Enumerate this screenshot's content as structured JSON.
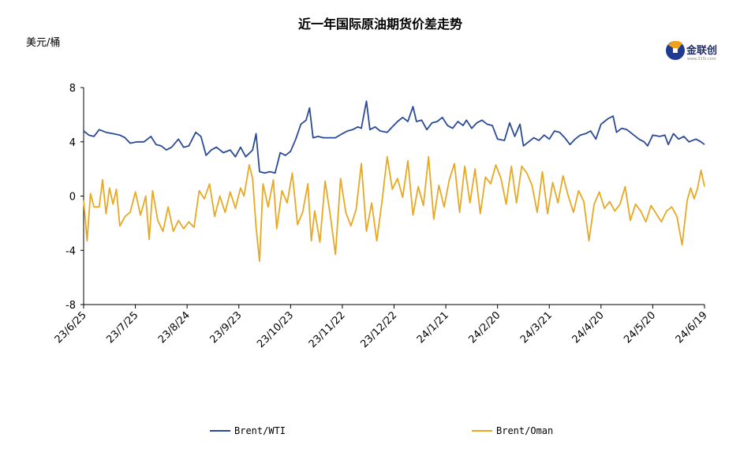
{
  "chart_data": {
    "type": "line",
    "title": "近一年国际原油期货价差走势",
    "ylabel": "美元/桶",
    "ylim": [
      -8,
      8
    ],
    "yticks": [
      8,
      4,
      0,
      -4,
      -8
    ],
    "xlim": [
      "2023-06-25",
      "2024-06-19"
    ],
    "xticks": [
      "23/6/25",
      "23/7/25",
      "23/8/24",
      "23/9/23",
      "23/10/23",
      "23/11/22",
      "23/12/22",
      "24/1/21",
      "24/2/20",
      "24/3/21",
      "24/4/20",
      "24/5/20",
      "24/6/19"
    ],
    "grid": false,
    "legend_position": "bottom",
    "series": [
      {
        "name": "Brent/WTI",
        "color": "#2b4a96",
        "points": [
          [
            "2023-06-25",
            4.8
          ],
          [
            "2023-06-28",
            4.5
          ],
          [
            "2023-07-01",
            4.4
          ],
          [
            "2023-07-04",
            4.9
          ],
          [
            "2023-07-08",
            4.7
          ],
          [
            "2023-07-12",
            4.6
          ],
          [
            "2023-07-16",
            4.5
          ],
          [
            "2023-07-19",
            4.3
          ],
          [
            "2023-07-22",
            3.9
          ],
          [
            "2023-07-26",
            4.0
          ],
          [
            "2023-07-30",
            4.0
          ],
          [
            "2023-08-03",
            4.4
          ],
          [
            "2023-08-06",
            3.8
          ],
          [
            "2023-08-09",
            3.7
          ],
          [
            "2023-08-12",
            3.4
          ],
          [
            "2023-08-15",
            3.6
          ],
          [
            "2023-08-19",
            4.2
          ],
          [
            "2023-08-22",
            3.6
          ],
          [
            "2023-08-25",
            3.7
          ],
          [
            "2023-08-29",
            4.7
          ],
          [
            "2023-09-01",
            4.4
          ],
          [
            "2023-09-04",
            3.0
          ],
          [
            "2023-09-07",
            3.4
          ],
          [
            "2023-09-10",
            3.6
          ],
          [
            "2023-09-14",
            3.2
          ],
          [
            "2023-09-18",
            3.4
          ],
          [
            "2023-09-21",
            2.9
          ],
          [
            "2023-09-24",
            3.6
          ],
          [
            "2023-09-27",
            2.9
          ],
          [
            "2023-10-01",
            3.4
          ],
          [
            "2023-10-03",
            4.6
          ],
          [
            "2023-10-05",
            1.8
          ],
          [
            "2023-10-08",
            1.7
          ],
          [
            "2023-10-11",
            1.8
          ],
          [
            "2023-10-14",
            1.7
          ],
          [
            "2023-10-17",
            3.2
          ],
          [
            "2023-10-20",
            3.0
          ],
          [
            "2023-10-23",
            3.3
          ],
          [
            "2023-10-26",
            4.2
          ],
          [
            "2023-10-29",
            5.3
          ],
          [
            "2023-11-01",
            5.6
          ],
          [
            "2023-11-03",
            6.5
          ],
          [
            "2023-11-05",
            4.3
          ],
          [
            "2023-11-08",
            4.4
          ],
          [
            "2023-11-11",
            4.3
          ],
          [
            "2023-11-15",
            4.3
          ],
          [
            "2023-11-18",
            4.3
          ],
          [
            "2023-11-22",
            4.6
          ],
          [
            "2023-11-25",
            4.8
          ],
          [
            "2023-11-28",
            4.9
          ],
          [
            "2023-12-01",
            5.1
          ],
          [
            "2023-12-03",
            5.0
          ],
          [
            "2023-12-06",
            7.0
          ],
          [
            "2023-12-08",
            4.9
          ],
          [
            "2023-12-11",
            5.1
          ],
          [
            "2023-12-14",
            4.8
          ],
          [
            "2023-12-18",
            4.7
          ],
          [
            "2023-12-21",
            5.1
          ],
          [
            "2023-12-24",
            5.5
          ],
          [
            "2023-12-27",
            5.8
          ],
          [
            "2023-12-30",
            5.5
          ],
          [
            "2024-01-02",
            6.6
          ],
          [
            "2024-01-04",
            5.5
          ],
          [
            "2024-01-07",
            5.6
          ],
          [
            "2024-01-10",
            4.9
          ],
          [
            "2024-01-13",
            5.4
          ],
          [
            "2024-01-16",
            5.5
          ],
          [
            "2024-01-19",
            5.8
          ],
          [
            "2024-01-22",
            5.2
          ],
          [
            "2024-01-25",
            5.0
          ],
          [
            "2024-01-28",
            5.5
          ],
          [
            "2024-01-31",
            5.2
          ],
          [
            "2024-02-02",
            5.6
          ],
          [
            "2024-02-05",
            5.0
          ],
          [
            "2024-02-08",
            5.4
          ],
          [
            "2024-02-11",
            5.6
          ],
          [
            "2024-02-14",
            5.3
          ],
          [
            "2024-02-17",
            5.2
          ],
          [
            "2024-02-20",
            4.2
          ],
          [
            "2024-02-24",
            4.1
          ],
          [
            "2024-02-27",
            5.4
          ],
          [
            "2024-03-01",
            4.4
          ],
          [
            "2024-03-04",
            5.3
          ],
          [
            "2024-03-06",
            3.7
          ],
          [
            "2024-03-09",
            4.0
          ],
          [
            "2024-03-12",
            4.3
          ],
          [
            "2024-03-15",
            4.1
          ],
          [
            "2024-03-18",
            4.5
          ],
          [
            "2024-03-21",
            4.2
          ],
          [
            "2024-03-24",
            4.8
          ],
          [
            "2024-03-27",
            4.7
          ],
          [
            "2024-03-30",
            4.3
          ],
          [
            "2024-04-02",
            3.8
          ],
          [
            "2024-04-05",
            4.2
          ],
          [
            "2024-04-08",
            4.5
          ],
          [
            "2024-04-11",
            4.6
          ],
          [
            "2024-04-14",
            4.8
          ],
          [
            "2024-04-17",
            4.2
          ],
          [
            "2024-04-20",
            5.3
          ],
          [
            "2024-04-24",
            5.7
          ],
          [
            "2024-04-27",
            5.9
          ],
          [
            "2024-04-29",
            4.7
          ],
          [
            "2024-05-02",
            5.0
          ],
          [
            "2024-05-05",
            4.9
          ],
          [
            "2024-05-08",
            4.6
          ],
          [
            "2024-05-12",
            4.2
          ],
          [
            "2024-05-15",
            4.0
          ],
          [
            "2024-05-17",
            3.7
          ],
          [
            "2024-05-20",
            4.5
          ],
          [
            "2024-05-24",
            4.4
          ],
          [
            "2024-05-27",
            4.5
          ],
          [
            "2024-05-29",
            3.8
          ],
          [
            "2024-06-01",
            4.6
          ],
          [
            "2024-06-04",
            4.2
          ],
          [
            "2024-06-07",
            4.4
          ],
          [
            "2024-06-10",
            4.0
          ],
          [
            "2024-06-14",
            4.2
          ],
          [
            "2024-06-17",
            4.0
          ],
          [
            "2024-06-19",
            3.8
          ]
        ]
      },
      {
        "name": "Brent/Oman",
        "color": "#e8a823",
        "points": [
          [
            "2023-06-25",
            -0.3
          ],
          [
            "2023-06-27",
            -3.3
          ],
          [
            "2023-06-29",
            0.2
          ],
          [
            "2023-07-01",
            -0.8
          ],
          [
            "2023-07-04",
            -0.8
          ],
          [
            "2023-07-06",
            1.2
          ],
          [
            "2023-07-08",
            -1.3
          ],
          [
            "2023-07-10",
            0.6
          ],
          [
            "2023-07-12",
            -0.6
          ],
          [
            "2023-07-14",
            0.5
          ],
          [
            "2023-07-16",
            -2.2
          ],
          [
            "2023-07-19",
            -1.5
          ],
          [
            "2023-07-22",
            -1.2
          ],
          [
            "2023-07-25",
            0.3
          ],
          [
            "2023-07-28",
            -1.4
          ],
          [
            "2023-07-31",
            0.0
          ],
          [
            "2023-08-02",
            -3.2
          ],
          [
            "2023-08-04",
            0.4
          ],
          [
            "2023-08-07",
            -1.8
          ],
          [
            "2023-08-10",
            -2.6
          ],
          [
            "2023-08-13",
            -0.8
          ],
          [
            "2023-08-16",
            -2.6
          ],
          [
            "2023-08-19",
            -1.8
          ],
          [
            "2023-08-22",
            -2.4
          ],
          [
            "2023-08-25",
            -1.9
          ],
          [
            "2023-08-28",
            -2.3
          ],
          [
            "2023-08-31",
            0.4
          ],
          [
            "2023-09-03",
            -0.2
          ],
          [
            "2023-09-06",
            0.9
          ],
          [
            "2023-09-09",
            -1.5
          ],
          [
            "2023-09-12",
            0.0
          ],
          [
            "2023-09-15",
            -1.2
          ],
          [
            "2023-09-18",
            0.3
          ],
          [
            "2023-09-21",
            -0.9
          ],
          [
            "2023-09-24",
            0.6
          ],
          [
            "2023-09-26",
            0.0
          ],
          [
            "2023-09-29",
            2.3
          ],
          [
            "2023-10-01",
            1.3
          ],
          [
            "2023-10-03",
            -2.3
          ],
          [
            "2023-10-05",
            -4.8
          ],
          [
            "2023-10-07",
            0.9
          ],
          [
            "2023-10-10",
            -0.8
          ],
          [
            "2023-10-13",
            1.2
          ],
          [
            "2023-10-15",
            -2.4
          ],
          [
            "2023-10-18",
            0.4
          ],
          [
            "2023-10-21",
            -0.5
          ],
          [
            "2023-10-24",
            1.7
          ],
          [
            "2023-10-27",
            -2.1
          ],
          [
            "2023-10-30",
            -1.2
          ],
          [
            "2023-11-02",
            0.9
          ],
          [
            "2023-11-04",
            -3.3
          ],
          [
            "2023-11-06",
            -1.1
          ],
          [
            "2023-11-09",
            -3.4
          ],
          [
            "2023-11-12",
            1.1
          ],
          [
            "2023-11-15",
            -1.4
          ],
          [
            "2023-11-18",
            -4.3
          ],
          [
            "2023-11-21",
            1.3
          ],
          [
            "2023-11-24",
            -1.2
          ],
          [
            "2023-11-27",
            -2.2
          ],
          [
            "2023-11-30",
            -1.0
          ],
          [
            "2023-12-03",
            2.4
          ],
          [
            "2023-12-06",
            -2.6
          ],
          [
            "2023-12-09",
            -0.5
          ],
          [
            "2023-12-12",
            -3.3
          ],
          [
            "2023-12-15",
            -0.4
          ],
          [
            "2023-12-18",
            2.9
          ],
          [
            "2023-12-21",
            0.5
          ],
          [
            "2023-12-24",
            1.3
          ],
          [
            "2023-12-27",
            -0.1
          ],
          [
            "2023-12-30",
            2.6
          ],
          [
            "2024-01-02",
            -1.4
          ],
          [
            "2024-01-05",
            0.7
          ],
          [
            "2024-01-08",
            -0.7
          ],
          [
            "2024-01-11",
            2.9
          ],
          [
            "2024-01-14",
            -1.7
          ],
          [
            "2024-01-17",
            0.8
          ],
          [
            "2024-01-20",
            -0.8
          ],
          [
            "2024-01-23",
            1.2
          ],
          [
            "2024-01-26",
            2.4
          ],
          [
            "2024-01-29",
            -1.2
          ],
          [
            "2024-02-01",
            2.2
          ],
          [
            "2024-02-04",
            -0.5
          ],
          [
            "2024-02-07",
            2.0
          ],
          [
            "2024-02-10",
            -1.3
          ],
          [
            "2024-02-13",
            1.4
          ],
          [
            "2024-02-16",
            0.9
          ],
          [
            "2024-02-19",
            2.3
          ],
          [
            "2024-02-22",
            1.3
          ],
          [
            "2024-02-25",
            -0.6
          ],
          [
            "2024-02-28",
            2.2
          ],
          [
            "2024-03-02",
            -0.5
          ],
          [
            "2024-03-05",
            2.2
          ],
          [
            "2024-03-08",
            1.7
          ],
          [
            "2024-03-11",
            0.8
          ],
          [
            "2024-03-14",
            -1.2
          ],
          [
            "2024-03-17",
            1.8
          ],
          [
            "2024-03-20",
            -1.3
          ],
          [
            "2024-03-23",
            1.0
          ],
          [
            "2024-03-26",
            -0.5
          ],
          [
            "2024-03-29",
            1.5
          ],
          [
            "2024-04-01",
            0.0
          ],
          [
            "2024-04-04",
            -1.2
          ],
          [
            "2024-04-07",
            0.4
          ],
          [
            "2024-04-10",
            -0.4
          ],
          [
            "2024-04-13",
            -3.3
          ],
          [
            "2024-04-16",
            -0.6
          ],
          [
            "2024-04-19",
            0.3
          ],
          [
            "2024-04-22",
            -0.9
          ],
          [
            "2024-04-25",
            -0.4
          ],
          [
            "2024-04-28",
            -1.1
          ],
          [
            "2024-05-01",
            -0.6
          ],
          [
            "2024-05-04",
            0.7
          ],
          [
            "2024-05-07",
            -1.8
          ],
          [
            "2024-05-10",
            -0.6
          ],
          [
            "2024-05-13",
            -1.1
          ],
          [
            "2024-05-16",
            -1.9
          ],
          [
            "2024-05-19",
            -0.7
          ],
          [
            "2024-05-22",
            -1.3
          ],
          [
            "2024-05-25",
            -1.9
          ],
          [
            "2024-05-28",
            -1.1
          ],
          [
            "2024-05-31",
            -0.8
          ],
          [
            "2024-06-03",
            -1.5
          ],
          [
            "2024-06-06",
            -3.6
          ],
          [
            "2024-06-09",
            -0.3
          ],
          [
            "2024-06-11",
            0.6
          ],
          [
            "2024-06-13",
            -0.2
          ],
          [
            "2024-06-15",
            0.6
          ],
          [
            "2024-06-17",
            1.9
          ],
          [
            "2024-06-19",
            0.7
          ]
        ]
      }
    ]
  },
  "logo": {
    "name": "金联创",
    "sub": "www.315i.com"
  },
  "colors": {
    "axis": "#000000",
    "background": "#ffffff"
  }
}
